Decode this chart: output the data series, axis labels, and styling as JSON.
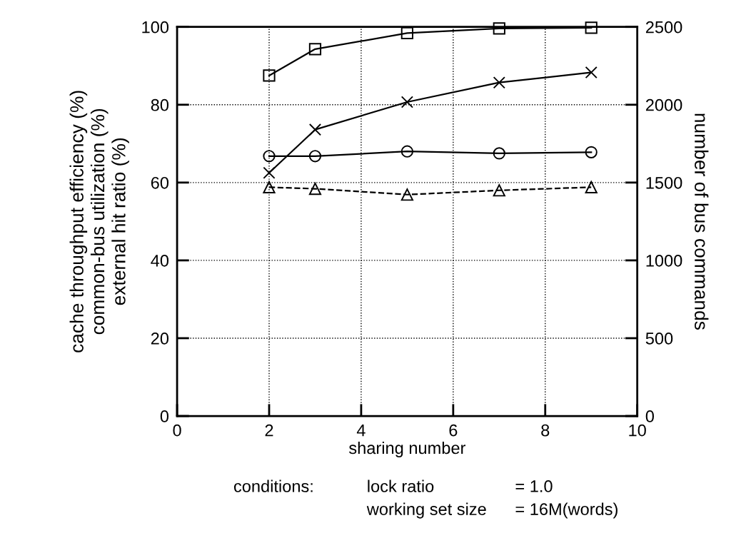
{
  "chart_data": {
    "type": "line",
    "xlabel": "sharing number",
    "ylabel": "cache throughput efficiency (%)\ncommon-bus utilization (%)\nexternal hit ratio (%)",
    "y2label": "number of bus commands",
    "x": [
      2,
      3,
      5,
      7,
      9
    ],
    "series": [
      {
        "color": "#000000",
        "marker": "square",
        "line_style": "solid",
        "values": [
          87.5,
          94.3,
          98.4,
          99.6,
          99.8
        ]
      },
      {
        "color": "#000000",
        "marker": "cross",
        "line_style": "solid",
        "values": [
          62.5,
          73.6,
          80.7,
          85.7,
          88.3
        ]
      },
      {
        "color": "#000000",
        "marker": "circle",
        "line_style": "solid",
        "values": [
          66.8,
          66.8,
          68,
          67.5,
          67.8
        ]
      },
      {
        "color": "#000000",
        "marker": "triangle",
        "line_style": "dashed",
        "values": [
          58.8,
          58.4,
          56.9,
          58,
          58.8
        ]
      }
    ],
    "xlim": [
      0,
      10
    ],
    "xticks": [
      0,
      2,
      4,
      6,
      8,
      10
    ],
    "ylim": [
      0,
      100
    ],
    "yticks": [
      0,
      20,
      40,
      60,
      80,
      100
    ],
    "y2lim": [
      0,
      2500
    ],
    "y2ticks": [
      0,
      500,
      1000,
      1500,
      2000,
      2500
    ],
    "grid": true,
    "annotations": [
      "conditions:",
      "lock ratio",
      "= 1.0",
      "working set size",
      "= 16M(words)"
    ]
  }
}
